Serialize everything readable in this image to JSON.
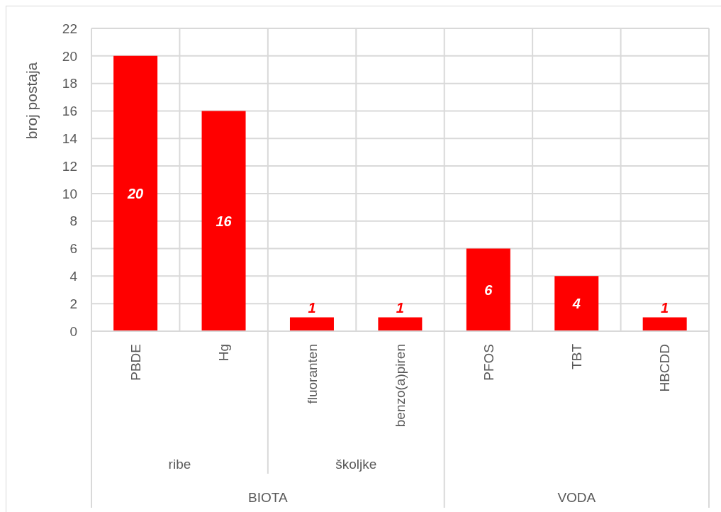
{
  "chart_data": {
    "type": "bar",
    "ylabel": "broj postaja",
    "categories": [
      "PBDE",
      "Hg",
      "fluoranten",
      "benzo(a)piren",
      "PFOS",
      "TBT",
      "HBCDD"
    ],
    "values": [
      20,
      16,
      1,
      1,
      6,
      4,
      1
    ],
    "color": "#ff0000",
    "ylim": [
      0,
      22
    ],
    "yticks": [
      0,
      2,
      4,
      6,
      8,
      10,
      12,
      14,
      16,
      18,
      20,
      22
    ],
    "grid": true,
    "data_labels": true,
    "annotations": [
      "ribe",
      "školjke",
      "BIOTA",
      "VODA"
    ]
  }
}
